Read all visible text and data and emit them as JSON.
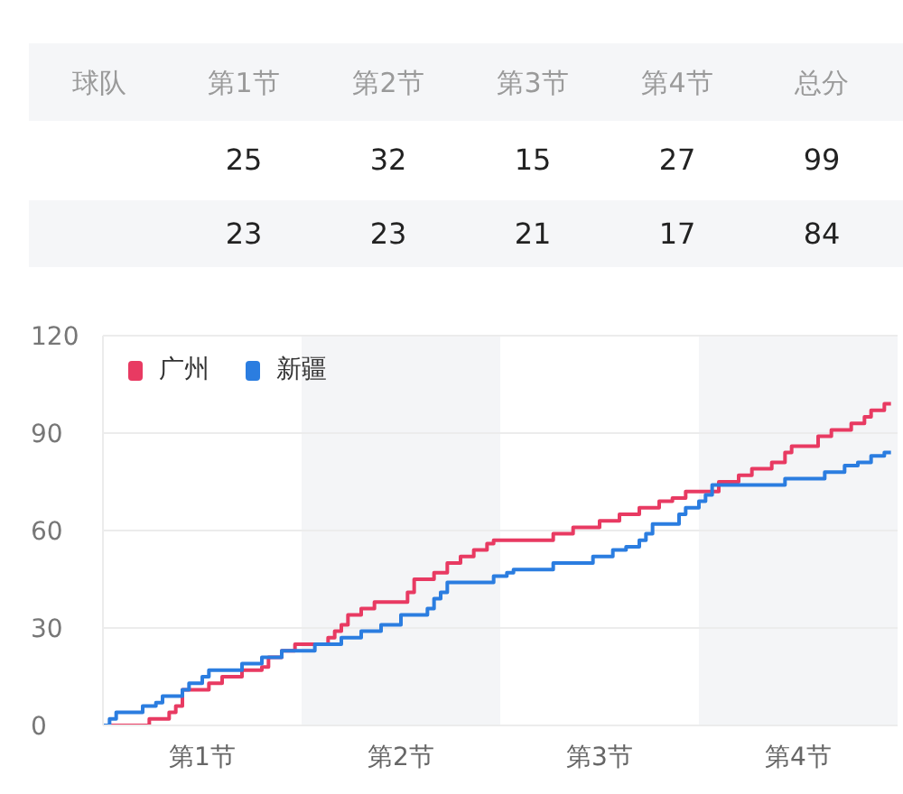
{
  "chart_data": [
    {
      "type": "other",
      "ylabel": "球队",
      "categories": [
        "第1节",
        "第2节",
        "第3节",
        "第4节",
        "总分"
      ],
      "data_labels": true,
      "series": [
        {
          "values": [
            25,
            32,
            15,
            27,
            99
          ]
        },
        {
          "values": [
            23,
            23,
            21,
            17,
            84
          ]
        }
      ]
    },
    {
      "type": "step",
      "categories": [
        null,
        null,
        null,
        null,
        null,
        null,
        null,
        null,
        null,
        null,
        null,
        null,
        null,
        null,
        null,
        "第1节",
        null,
        null,
        null,
        null,
        null,
        null,
        null,
        null,
        null,
        null,
        null,
        null,
        null,
        null,
        null,
        null,
        null,
        null,
        null,
        null,
        null,
        null,
        null,
        null,
        null,
        null,
        null,
        null,
        null,
        "第2节",
        null,
        null,
        null,
        null,
        null,
        null,
        null,
        null,
        null,
        null,
        null,
        null,
        null,
        null,
        null,
        null,
        null,
        null,
        null,
        null,
        null,
        null,
        null,
        null,
        null,
        null,
        null,
        null,
        null,
        "第3节",
        null,
        null,
        null,
        null,
        null,
        null,
        null,
        null,
        null,
        null,
        null,
        null,
        null,
        null,
        null,
        null,
        null,
        null,
        null,
        null,
        null,
        null,
        null,
        null,
        null,
        null,
        null,
        null,
        null,
        "第4节",
        null,
        null,
        null,
        null,
        null,
        null,
        null,
        null,
        null,
        null,
        null,
        null,
        null,
        null,
        null
      ],
      "ylim": [
        0,
        120
      ],
      "yticks": [
        0,
        30,
        60,
        90,
        120
      ],
      "grid": "y",
      "legend": "top left",
      "series": [
        {
          "name": "广州",
          "color": "#e83a62",
          "values": [
            0,
            0,
            0,
            0,
            0,
            0,
            0,
            2,
            2,
            2,
            4,
            6,
            11,
            11,
            11,
            11,
            13,
            13,
            15,
            15,
            15,
            17,
            17,
            17,
            18,
            21,
            21,
            23,
            23,
            25,
            25,
            25,
            25,
            25,
            27,
            29,
            31,
            34,
            34,
            36,
            36,
            38,
            38,
            38,
            38,
            38,
            41,
            45,
            45,
            45,
            47,
            47,
            50,
            50,
            52,
            52,
            54,
            54,
            56,
            57,
            57,
            57,
            57,
            57,
            57,
            57,
            57,
            57,
            59,
            59,
            59,
            61,
            61,
            61,
            61,
            63,
            63,
            63,
            65,
            65,
            65,
            67,
            67,
            67,
            69,
            69,
            70,
            70,
            72,
            72,
            72,
            72,
            72,
            75,
            75,
            75,
            77,
            77,
            79,
            79,
            79,
            81,
            81,
            84,
            86,
            86,
            86,
            86,
            89,
            89,
            91,
            91,
            91,
            93,
            93,
            95,
            97,
            97,
            99,
            99,
            null
          ]
        },
        {
          "name": "新疆",
          "color": "#2b7de0",
          "values": [
            0,
            2,
            4,
            4,
            4,
            4,
            6,
            6,
            7,
            9,
            9,
            9,
            11,
            13,
            13,
            15,
            17,
            17,
            17,
            17,
            17,
            19,
            19,
            19,
            21,
            21,
            21,
            23,
            23,
            23,
            23,
            23,
            25,
            25,
            25,
            25,
            27,
            27,
            27,
            29,
            29,
            29,
            31,
            31,
            31,
            34,
            34,
            34,
            34,
            36,
            39,
            41,
            44,
            44,
            44,
            44,
            44,
            44,
            44,
            46,
            46,
            47,
            48,
            48,
            48,
            48,
            48,
            48,
            50,
            50,
            50,
            50,
            50,
            50,
            52,
            52,
            52,
            54,
            54,
            55,
            55,
            57,
            59,
            62,
            62,
            62,
            62,
            65,
            67,
            67,
            69,
            71,
            74,
            74,
            74,
            74,
            74,
            74,
            74,
            74,
            74,
            74,
            74,
            76,
            76,
            76,
            76,
            76,
            76,
            78,
            78,
            78,
            80,
            80,
            81,
            81,
            83,
            83,
            84,
            84,
            null
          ]
        }
      ]
    }
  ]
}
